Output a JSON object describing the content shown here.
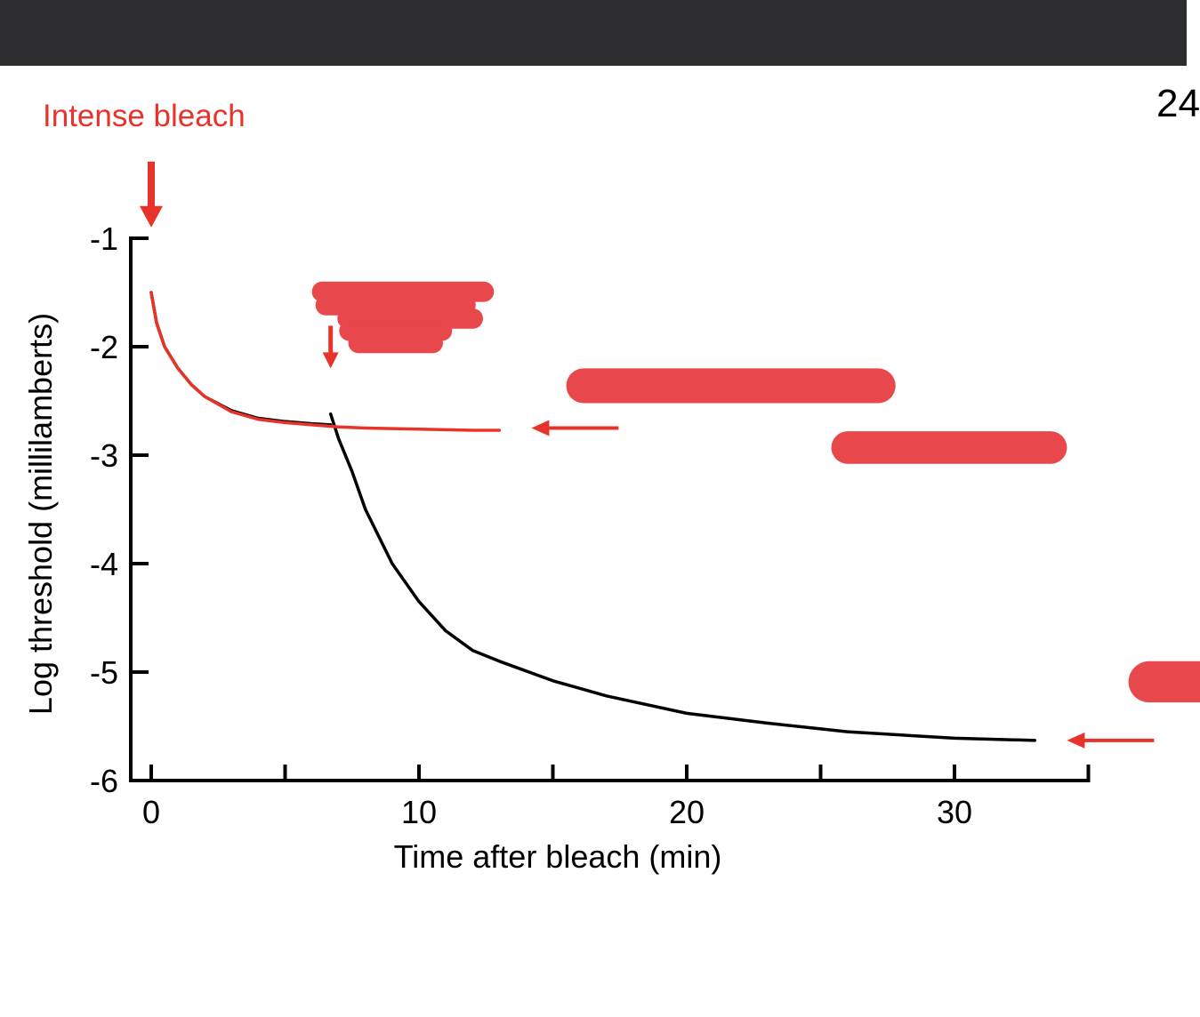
{
  "slide": {
    "page_number": "24",
    "top_bar_color": "#2d2d2f"
  },
  "annotation": {
    "bleach_label": "Intense bleach",
    "annotation_color": "#e8332a",
    "redaction_color": "#e8474c"
  },
  "chart_data": {
    "type": "line",
    "title": "",
    "xlabel": "Time after bleach (min)",
    "ylabel": "Log threshold (millilamberts)",
    "xlim": [
      -0.8,
      35
    ],
    "ylim": [
      -6,
      -1
    ],
    "x_ticks": [
      0,
      10,
      20,
      30
    ],
    "x_minor_ticks": [
      5,
      15,
      25,
      35
    ],
    "y_ticks": [
      -1,
      -2,
      -3,
      -4,
      -5,
      -6
    ],
    "grid": false,
    "legend": "none",
    "series": [
      {
        "color": "#e8332a",
        "x": [
          0,
          0.2,
          0.5,
          1,
          1.5,
          2,
          3,
          4,
          5,
          6,
          7,
          8,
          10,
          12,
          13
        ],
        "y": [
          -1.5,
          -1.78,
          -2.0,
          -2.2,
          -2.35,
          -2.46,
          -2.6,
          -2.67,
          -2.7,
          -2.72,
          -2.74,
          -2.75,
          -2.76,
          -2.77,
          -2.77
        ]
      },
      {
        "color": "#000000",
        "x": [
          0,
          0.2,
          0.5,
          1,
          1.5,
          2,
          3,
          4,
          5,
          6,
          6.7
        ],
        "y": [
          -1.5,
          -1.78,
          -2.0,
          -2.2,
          -2.35,
          -2.46,
          -2.59,
          -2.66,
          -2.69,
          -2.71,
          -2.72
        ]
      },
      {
        "color": "#000000",
        "x": [
          6.7,
          7,
          7.5,
          8,
          9,
          10,
          11,
          12,
          13,
          15,
          17,
          20,
          23,
          26,
          30,
          33
        ],
        "y": [
          -2.62,
          -2.85,
          -3.15,
          -3.5,
          -4.0,
          -4.35,
          -4.62,
          -4.8,
          -4.9,
          -5.08,
          -5.22,
          -5.38,
          -5.47,
          -5.55,
          -5.61,
          -5.63
        ]
      }
    ],
    "arrows": [
      {
        "kind": "down",
        "x": 0,
        "y": -0.9
      },
      {
        "kind": "down",
        "x": 6.7,
        "y": -2.2
      },
      {
        "kind": "left",
        "x": 14.2,
        "y": -2.75
      },
      {
        "kind": "left",
        "x": 34.2,
        "y": -5.63
      }
    ],
    "redactions": [
      {
        "x": 6.0,
        "y": -1.4,
        "w": 6.8,
        "h": 0.72
      },
      {
        "x": 15.5,
        "y": -2.2,
        "w": 12.3,
        "h": 0.32
      },
      {
        "x": 25.4,
        "y": -2.78,
        "w": 8.8,
        "h": 0.3
      },
      {
        "x": 36.5,
        "y": -4.9,
        "w": 8.2,
        "h": 0.38
      }
    ]
  }
}
